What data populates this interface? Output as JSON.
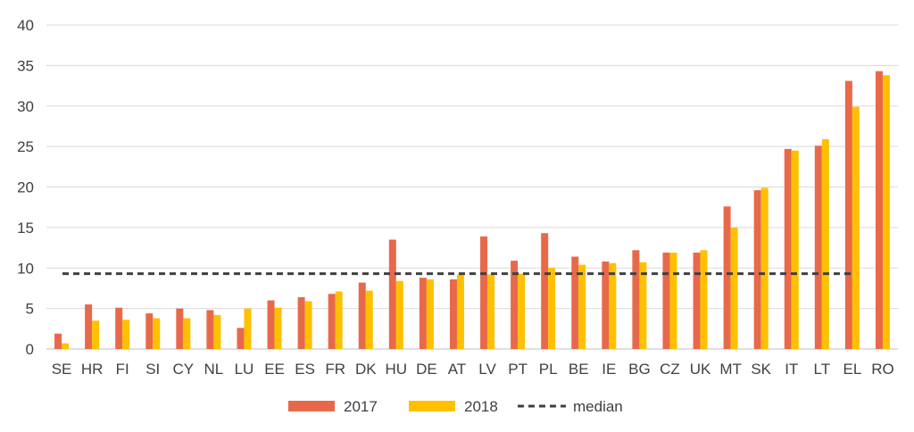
{
  "chart_data": {
    "type": "bar",
    "categories": [
      "SE",
      "HR",
      "FI",
      "SI",
      "CY",
      "NL",
      "LU",
      "EE",
      "ES",
      "FR",
      "DK",
      "HU",
      "DE",
      "AT",
      "LV",
      "PT",
      "PL",
      "BE",
      "IE",
      "BG",
      "CZ",
      "UK",
      "MT",
      "SK",
      "IT",
      "LT",
      "EL",
      "RO"
    ],
    "series": [
      {
        "name": "2017",
        "color": "#E8694A",
        "values": [
          1.9,
          5.5,
          5.1,
          4.4,
          5.0,
          4.8,
          2.6,
          6.0,
          6.4,
          6.8,
          8.2,
          13.5,
          8.8,
          8.6,
          13.9,
          10.9,
          14.3,
          11.4,
          10.8,
          12.2,
          11.9,
          11.9,
          17.6,
          19.6,
          24.7,
          25.1,
          33.1,
          34.3
        ]
      },
      {
        "name": "2018",
        "color": "#FFC000",
        "values": [
          0.7,
          3.5,
          3.6,
          3.8,
          3.8,
          4.2,
          5.0,
          5.1,
          5.9,
          7.1,
          7.2,
          8.4,
          8.6,
          9.2,
          9.2,
          9.3,
          10.0,
          10.4,
          10.6,
          10.7,
          11.9,
          12.2,
          15.0,
          19.9,
          24.5,
          25.9,
          29.9,
          33.8
        ]
      }
    ],
    "median": {
      "name": "median",
      "value": 9.3,
      "color": "#404040"
    },
    "ylim": [
      0,
      40
    ],
    "yticks": [
      "0",
      "5",
      "10",
      "15",
      "20",
      "25",
      "30",
      "35",
      "40"
    ],
    "grid": true,
    "legend_placement": "bottom-center",
    "title": "",
    "xlabel": "",
    "ylabel": ""
  }
}
